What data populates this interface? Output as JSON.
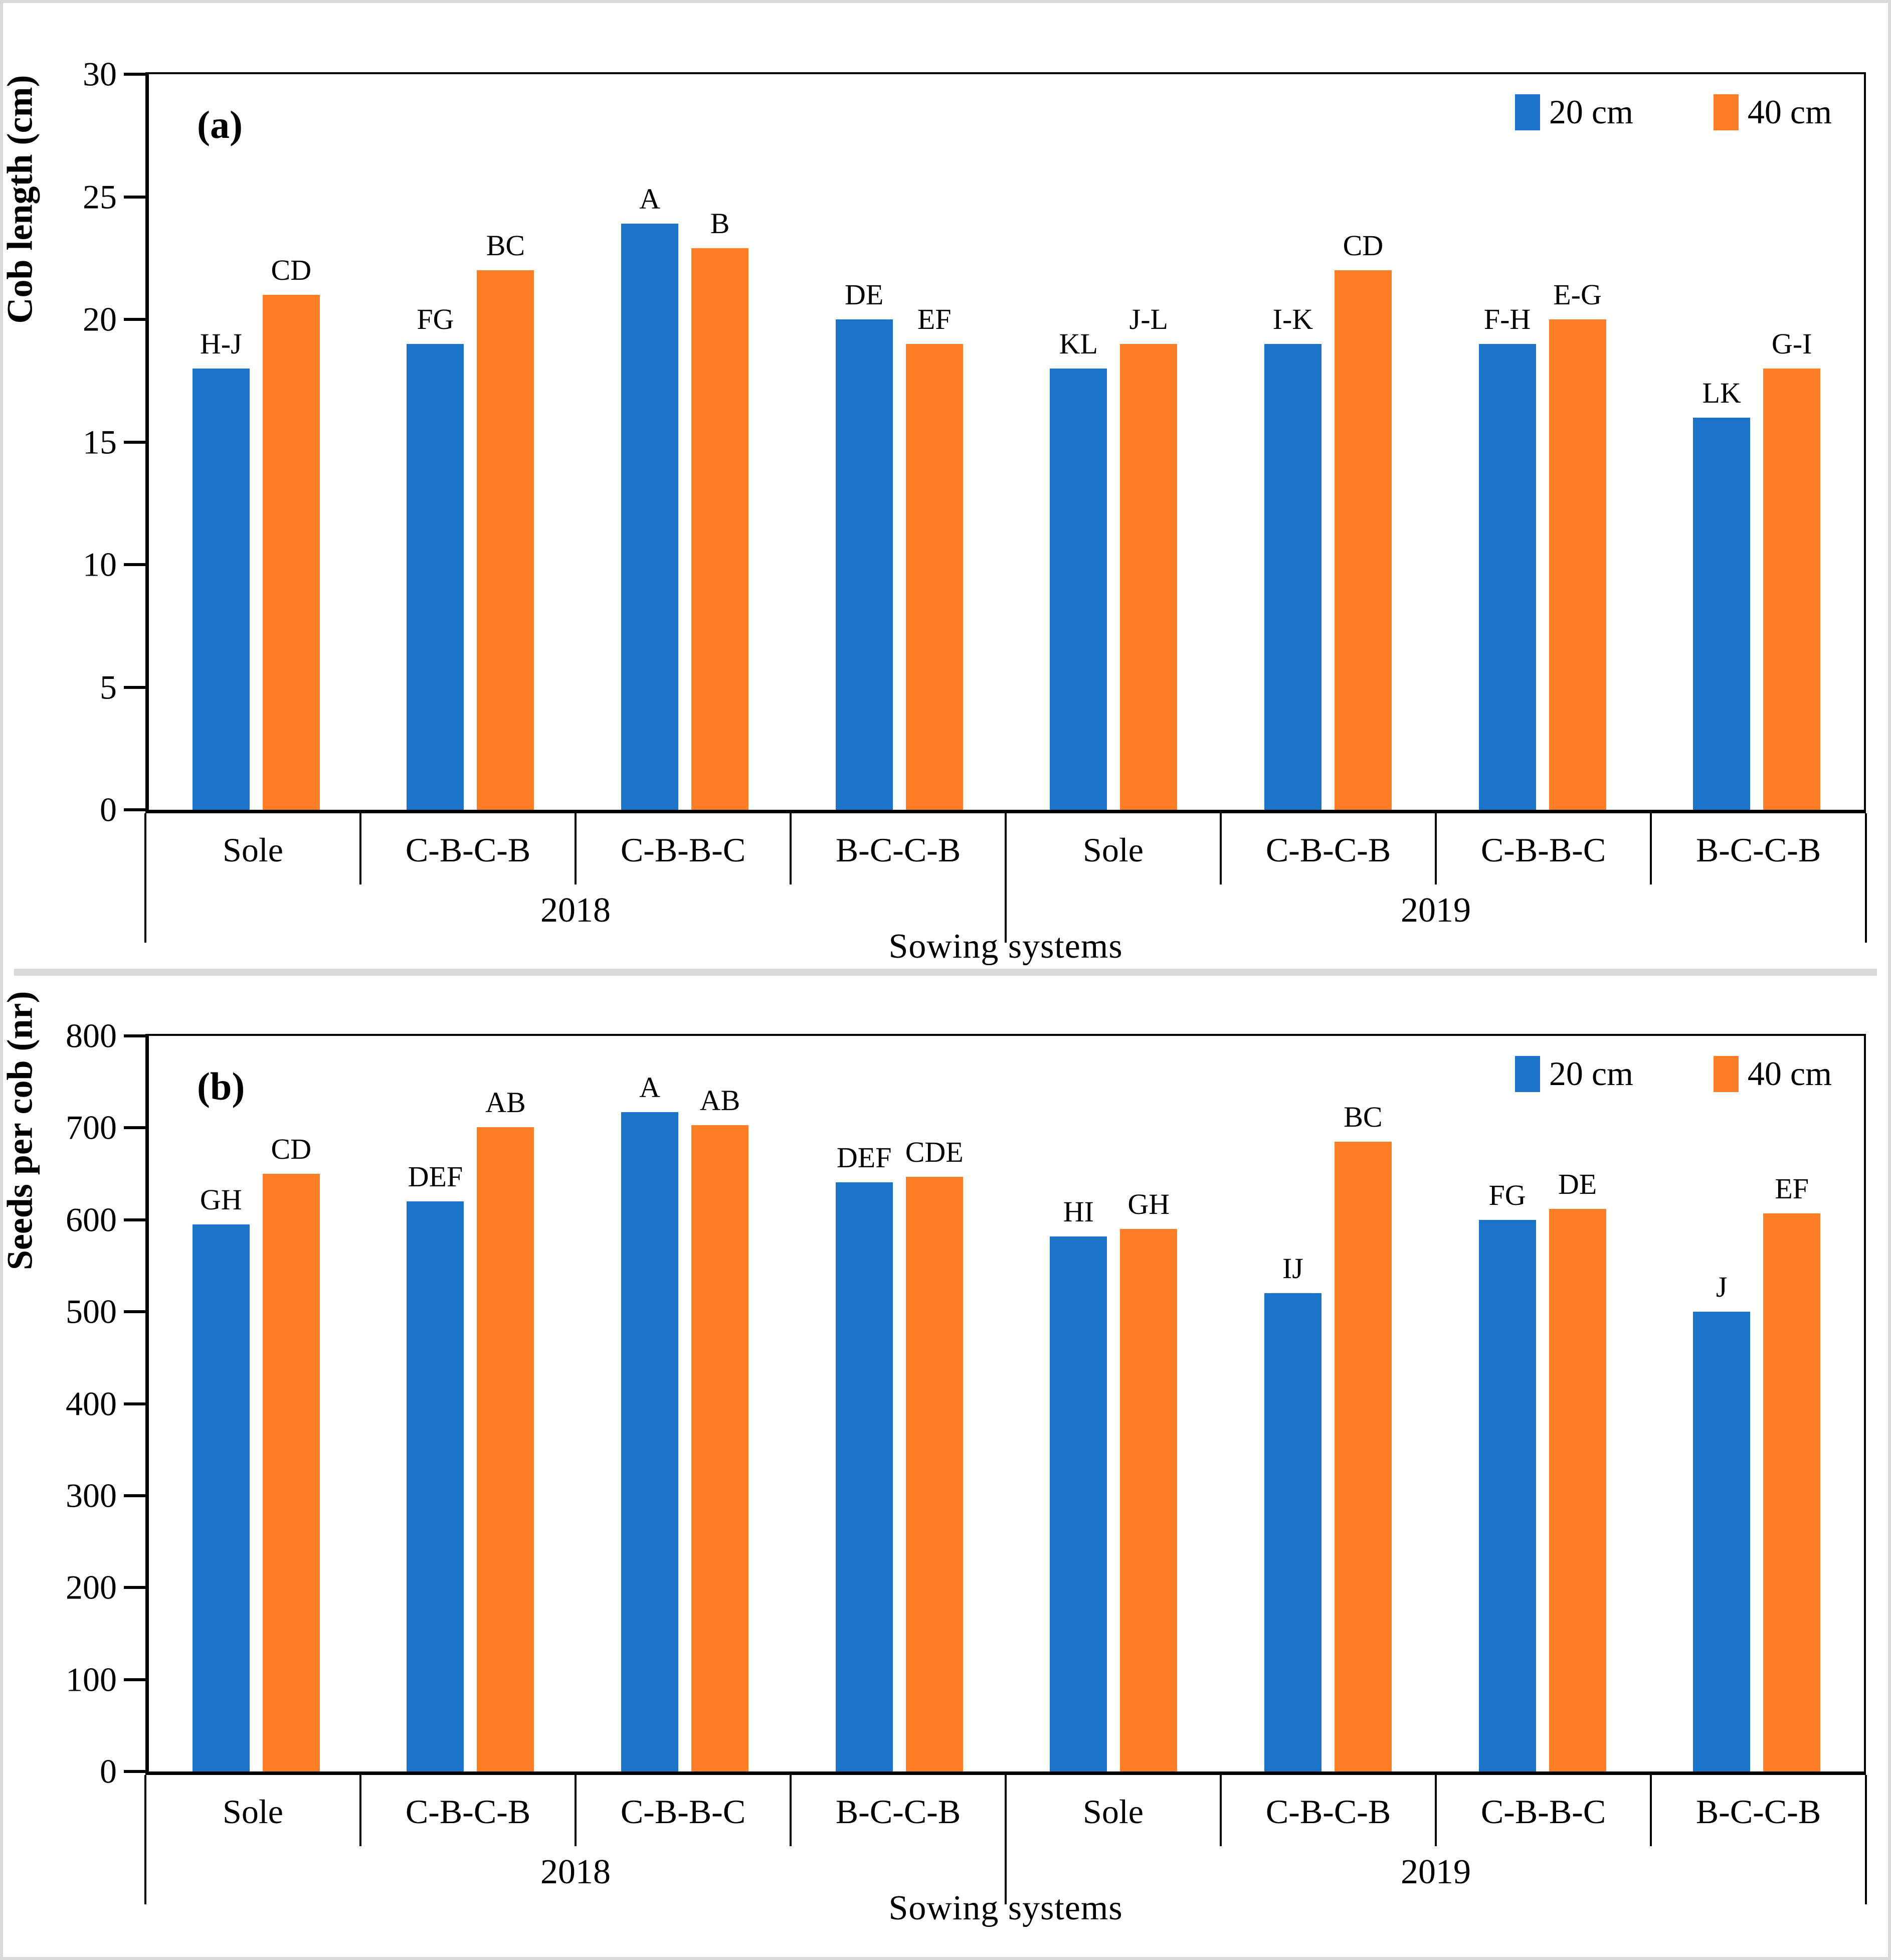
{
  "colors": {
    "series_20cm": "#1B74C8",
    "series_40cm": "#FD7E27",
    "axis": "#000000",
    "frame": "#D9D9D9"
  },
  "legend": {
    "label_20cm": "20 cm",
    "label_40cm": "40 cm"
  },
  "chart_data": [
    {
      "type": "bar",
      "panel_label": "(a)",
      "ylabel": "Cob length (cm)",
      "xlabel": "Sowing systems",
      "ylim": [
        0,
        30
      ],
      "yticks": [
        0,
        5,
        10,
        15,
        20,
        25,
        30
      ],
      "grid": false,
      "legend_position": "top-right-inside",
      "legend_entries": [
        "20 cm",
        "40 cm"
      ],
      "categories": [
        "Sole",
        "C-B-C-B",
        "C-B-B-C",
        "B-C-C-B",
        "Sole",
        "C-B-C-B",
        "C-B-B-C",
        "B-C-C-B"
      ],
      "year_groups": [
        {
          "label": "2018"
        },
        {
          "label": "2019"
        }
      ],
      "series": [
        {
          "name": "20 cm",
          "color_key": "series_20cm",
          "values": [
            18,
            19,
            23.9,
            20,
            18,
            19,
            19,
            16
          ],
          "letters": [
            "H-J",
            "FG",
            "A",
            "DE",
            "KL",
            "I-K",
            "F-H",
            "LK"
          ]
        },
        {
          "name": "40 cm",
          "color_key": "series_40cm",
          "values": [
            21,
            22,
            22.9,
            19,
            19,
            22,
            20,
            18
          ],
          "letters": [
            "CD",
            "BC",
            "B",
            "EF",
            "J-L",
            "CD",
            "E-G",
            "G-I"
          ]
        }
      ]
    },
    {
      "type": "bar",
      "panel_label": "(b)",
      "ylabel": "Seeds per cob (nr)",
      "xlabel": "Sowing systems",
      "ylim": [
        0,
        800
      ],
      "yticks": [
        0,
        100,
        200,
        300,
        400,
        500,
        600,
        700,
        800
      ],
      "grid": false,
      "legend_position": "top-right-inside",
      "legend_entries": [
        "20 cm",
        "40 cm"
      ],
      "categories": [
        "Sole",
        "C-B-C-B",
        "C-B-B-C",
        "B-C-C-B",
        "Sole",
        "C-B-C-B",
        "C-B-B-C",
        "B-C-C-B"
      ],
      "year_groups": [
        {
          "label": "2018"
        },
        {
          "label": "2019"
        }
      ],
      "series": [
        {
          "name": "20 cm",
          "color_key": "series_20cm",
          "values": [
            595,
            620,
            717,
            641,
            582,
            520,
            600,
            500
          ],
          "letters": [
            "GH",
            "DEF",
            "A",
            "DEF",
            "HI",
            "IJ",
            "FG",
            "J"
          ]
        },
        {
          "name": "40 cm",
          "color_key": "series_40cm",
          "values": [
            650,
            701,
            703,
            647,
            590,
            685,
            612,
            607
          ],
          "letters": [
            "CD",
            "AB",
            "AB",
            "CDE",
            "GH",
            "BC",
            "DE",
            "EF"
          ]
        }
      ]
    }
  ]
}
